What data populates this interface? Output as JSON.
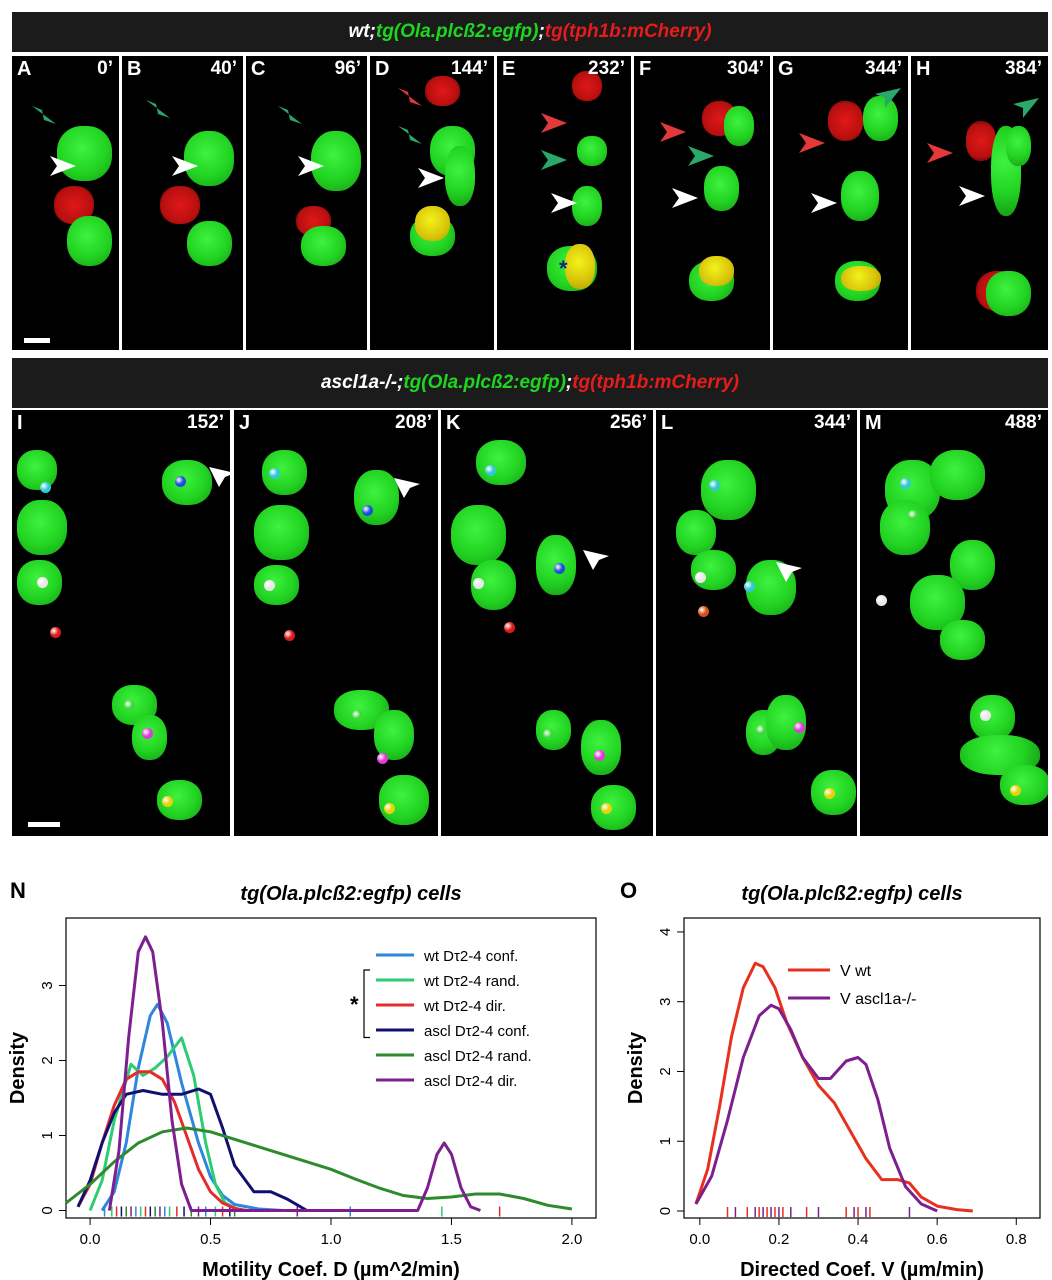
{
  "banner_top": {
    "part1": "wt;",
    "part2": "tg(Ola.plcß2:egfp)",
    "part3": ";",
    "part4": "tg(tph1b:mCherry)"
  },
  "banner_mid": {
    "part1": "ascl1a-/-;",
    "part2": "tg(Ola.plcß2:egfp)",
    "part3": ";",
    "part4": "tg(tph1b:mCherry)"
  },
  "top_panels": [
    {
      "label": "A",
      "time": "0’"
    },
    {
      "label": "B",
      "time": "40’"
    },
    {
      "label": "C",
      "time": "96’"
    },
    {
      "label": "D",
      "time": "144’"
    },
    {
      "label": "E",
      "time": "232’"
    },
    {
      "label": "F",
      "time": "304’"
    },
    {
      "label": "G",
      "time": "344’"
    },
    {
      "label": "H",
      "time": "384’"
    }
  ],
  "mid_panels": [
    {
      "label": "I",
      "time": "152’"
    },
    {
      "label": "J",
      "time": "208’"
    },
    {
      "label": "K",
      "time": "256’"
    },
    {
      "label": "L",
      "time": "344’"
    },
    {
      "label": "M",
      "time": "488’"
    }
  ],
  "asterisk_marker": "*",
  "colors": {
    "green": "#1fd51f",
    "red": "#e41c1c",
    "arrow_green": "#2aa86a",
    "arrow_red": "#e23a3a",
    "arrow_white": "#ffffff"
  },
  "chart_data": [
    {
      "panel_label": "N",
      "type": "line",
      "title": "tg(Ola.plcß2:egfp) cells",
      "xlabel": "Motility Coef. D (µm^2/min)",
      "ylabel": "Density",
      "xlim": [
        -0.1,
        2.1
      ],
      "ylim": [
        -0.1,
        3.9
      ],
      "xticks": [
        "0.0",
        "0.5",
        "1.0",
        "1.5",
        "2.0"
      ],
      "yticks": [
        "0",
        "1",
        "2",
        "3"
      ],
      "significance_marker": "*",
      "legend_position": "top-right",
      "series": [
        {
          "name": "wt Dτ2-4 conf.",
          "color": "#2e86de",
          "x": [
            0.05,
            0.1,
            0.15,
            0.2,
            0.25,
            0.28,
            0.32,
            0.38,
            0.45,
            0.5,
            0.55,
            0.6,
            0.7,
            0.8
          ],
          "y": [
            0.0,
            0.25,
            0.9,
            1.9,
            2.6,
            2.75,
            2.5,
            1.7,
            0.9,
            0.45,
            0.2,
            0.08,
            0.02,
            0.0
          ]
        },
        {
          "name": "wt Dτ2-4 rand.",
          "color": "#2ecc71",
          "x": [
            0.0,
            0.05,
            0.1,
            0.17,
            0.22,
            0.27,
            0.32,
            0.38,
            0.43,
            0.48,
            0.52,
            0.56,
            0.62
          ],
          "y": [
            0.0,
            0.4,
            1.2,
            1.95,
            1.8,
            1.9,
            2.05,
            2.3,
            1.8,
            0.9,
            0.35,
            0.1,
            0.0
          ]
        },
        {
          "name": "wt Dτ2-4 dir.",
          "color": "#e52b2b",
          "x": [
            -0.05,
            0.0,
            0.05,
            0.1,
            0.15,
            0.2,
            0.25,
            0.3,
            0.35,
            0.4,
            0.45,
            0.5,
            0.55,
            0.6,
            0.65
          ],
          "y": [
            0.05,
            0.35,
            0.9,
            1.4,
            1.75,
            1.85,
            1.85,
            1.75,
            1.45,
            1.0,
            0.55,
            0.25,
            0.1,
            0.03,
            0.0
          ]
        },
        {
          "name": "ascl Dτ2-4 conf.",
          "color": "#101070",
          "x": [
            -0.05,
            0.0,
            0.05,
            0.1,
            0.15,
            0.22,
            0.3,
            0.38,
            0.45,
            0.5,
            0.55,
            0.6,
            0.68,
            0.75,
            0.82,
            0.9
          ],
          "y": [
            0.05,
            0.4,
            0.9,
            1.3,
            1.55,
            1.6,
            1.55,
            1.55,
            1.62,
            1.55,
            1.1,
            0.6,
            0.25,
            0.25,
            0.15,
            0.0
          ]
        },
        {
          "name": "ascl Dτ2-4 rand.",
          "color": "#2d8a2d",
          "x": [
            -0.1,
            0.0,
            0.1,
            0.2,
            0.3,
            0.4,
            0.5,
            0.6,
            0.7,
            0.8,
            0.9,
            1.0,
            1.1,
            1.2,
            1.3,
            1.4,
            1.5,
            1.6,
            1.7,
            1.8,
            1.9,
            2.0
          ],
          "y": [
            0.1,
            0.35,
            0.65,
            0.9,
            1.05,
            1.1,
            1.05,
            0.95,
            0.85,
            0.75,
            0.65,
            0.55,
            0.42,
            0.3,
            0.2,
            0.16,
            0.18,
            0.22,
            0.22,
            0.16,
            0.07,
            0.02
          ]
        },
        {
          "name": "ascl Dτ2-4 dir.",
          "color": "#7d1f8f",
          "x": [
            0.08,
            0.12,
            0.16,
            0.2,
            0.23,
            0.26,
            0.3,
            0.34,
            0.38,
            0.42,
            1.36,
            1.4,
            1.44,
            1.47,
            1.5,
            1.54,
            1.58,
            1.62
          ],
          "y": [
            0.0,
            0.8,
            2.3,
            3.45,
            3.65,
            3.45,
            2.5,
            1.2,
            0.35,
            0.0,
            0.0,
            0.3,
            0.75,
            0.9,
            0.75,
            0.3,
            0.05,
            0.0
          ]
        }
      ],
      "rug_x": [
        0.06,
        0.09,
        0.11,
        0.13,
        0.15,
        0.17,
        0.19,
        0.21,
        0.23,
        0.25,
        0.27,
        0.29,
        0.31,
        0.33,
        0.36,
        0.39,
        0.42,
        0.45,
        0.48,
        0.52,
        0.55,
        0.58,
        0.6,
        0.86,
        1.08,
        1.46,
        1.7
      ]
    },
    {
      "panel_label": "O",
      "type": "line",
      "title": "tg(Ola.plcß2:egfp) cells",
      "xlabel": "Directed Coef. V (µm/min)",
      "ylabel": "Density",
      "xlim": [
        -0.04,
        0.86
      ],
      "ylim": [
        -0.1,
        4.2
      ],
      "xticks": [
        "0.0",
        "0.2",
        "0.4",
        "0.6",
        "0.8"
      ],
      "yticks": [
        "0",
        "1",
        "2",
        "3",
        "4"
      ],
      "legend_position": "top-right",
      "series": [
        {
          "name": "V wt",
          "color": "#e8301e",
          "x": [
            -0.01,
            0.02,
            0.05,
            0.08,
            0.11,
            0.14,
            0.16,
            0.19,
            0.22,
            0.26,
            0.3,
            0.34,
            0.38,
            0.42,
            0.46,
            0.5,
            0.53,
            0.56,
            0.6,
            0.65,
            0.69
          ],
          "y": [
            0.1,
            0.6,
            1.5,
            2.5,
            3.2,
            3.55,
            3.5,
            3.2,
            2.7,
            2.2,
            1.8,
            1.55,
            1.15,
            0.75,
            0.45,
            0.45,
            0.4,
            0.2,
            0.07,
            0.02,
            0.0
          ]
        },
        {
          "name": "V ascl1a-/-",
          "color": "#7d1f8f",
          "x": [
            -0.01,
            0.03,
            0.07,
            0.11,
            0.15,
            0.18,
            0.2,
            0.23,
            0.26,
            0.3,
            0.33,
            0.37,
            0.4,
            0.42,
            0.45,
            0.48,
            0.52,
            0.56,
            0.6
          ],
          "y": [
            0.1,
            0.5,
            1.3,
            2.2,
            2.8,
            2.95,
            2.9,
            2.6,
            2.2,
            1.9,
            1.9,
            2.15,
            2.2,
            2.1,
            1.6,
            0.9,
            0.35,
            0.1,
            0.0
          ]
        }
      ],
      "rug_x": [
        0.07,
        0.09,
        0.12,
        0.14,
        0.15,
        0.16,
        0.17,
        0.18,
        0.19,
        0.2,
        0.21,
        0.23,
        0.27,
        0.3,
        0.37,
        0.39,
        0.4,
        0.42,
        0.43,
        0.53
      ]
    }
  ]
}
